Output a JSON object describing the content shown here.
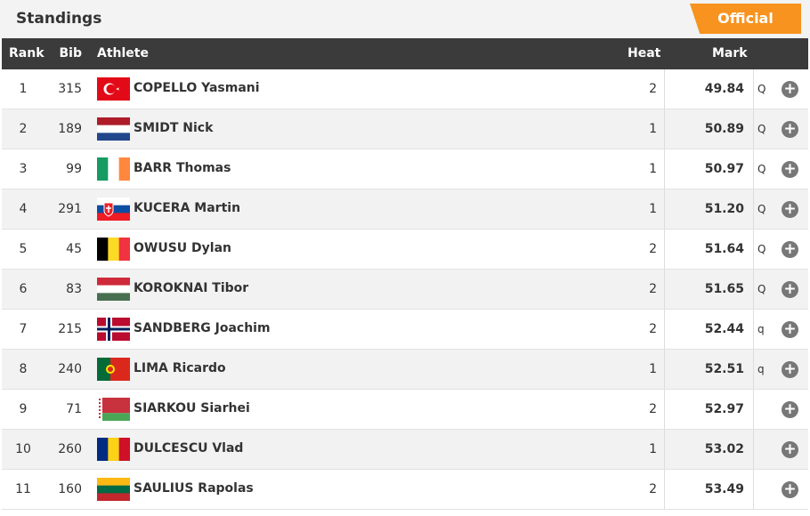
{
  "header": {
    "title": "Standings",
    "status": "Official"
  },
  "table": {
    "columns": [
      "Rank",
      "Bib",
      "Athlete",
      "Heat",
      "Mark"
    ],
    "rows": [
      {
        "rank": 1,
        "bib": 315,
        "athlete": "COPELLO Yasmani",
        "heat": 2,
        "mark": "49.84",
        "qualifier": "Q"
      },
      {
        "rank": 2,
        "bib": 189,
        "athlete": "SMIDT Nick",
        "heat": 1,
        "mark": "50.89",
        "qualifier": "Q"
      },
      {
        "rank": 3,
        "bib": 99,
        "athlete": "BARR Thomas",
        "heat": 1,
        "mark": "50.97",
        "qualifier": "Q"
      },
      {
        "rank": 4,
        "bib": 291,
        "athlete": "KUCERA Martin",
        "heat": 1,
        "mark": "51.20",
        "qualifier": "Q"
      },
      {
        "rank": 5,
        "bib": 45,
        "athlete": "OWUSU Dylan",
        "heat": 2,
        "mark": "51.64",
        "qualifier": "Q"
      },
      {
        "rank": 6,
        "bib": 83,
        "athlete": "KOROKNAI Tibor",
        "heat": 2,
        "mark": "51.65",
        "qualifier": "Q"
      },
      {
        "rank": 7,
        "bib": 215,
        "athlete": "SANDBERG Joachim",
        "heat": 2,
        "mark": "52.44",
        "qualifier": "q"
      },
      {
        "rank": 8,
        "bib": 240,
        "athlete": "LIMA Ricardo",
        "heat": 1,
        "mark": "52.51",
        "qualifier": "q"
      },
      {
        "rank": 9,
        "bib": 71,
        "athlete": "SIARKOU Siarhei",
        "heat": 2,
        "mark": "52.97"
      },
      {
        "rank": 10,
        "bib": 260,
        "athlete": "DULCESCU Vlad",
        "heat": 1,
        "mark": "53.02"
      },
      {
        "rank": 11,
        "bib": 160,
        "athlete": "SAULIUS Rapolas",
        "heat": 2,
        "mark": "53.49"
      }
    ]
  }
}
